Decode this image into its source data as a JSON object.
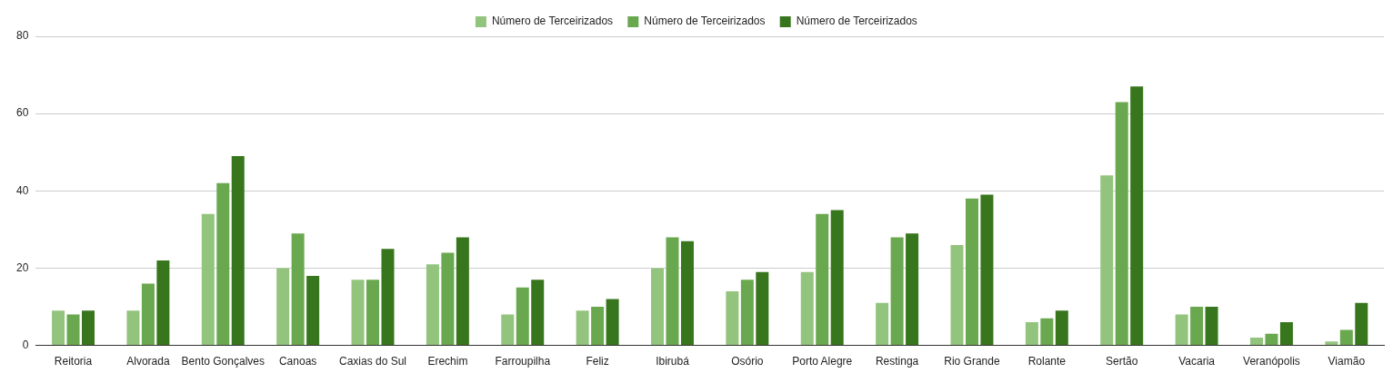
{
  "chart_data": {
    "type": "bar",
    "categories": [
      "Reitoria",
      "Alvorada",
      "Bento Gonçalves",
      "Canoas",
      "Caxias do Sul",
      "Erechim",
      "Farroupilha",
      "Feliz",
      "Ibirubá",
      "Osório",
      "Porto Alegre",
      "Restinga",
      "Rio Grande",
      "Rolante",
      "Sertão",
      "Vacaria",
      "Veranópolis",
      "Viamão"
    ],
    "series": [
      {
        "name": "Número de Terceirizados",
        "color": "#93c47d",
        "values": [
          9,
          9,
          34,
          20,
          17,
          21,
          8,
          9,
          20,
          14,
          19,
          11,
          26,
          6,
          44,
          8,
          2,
          1
        ]
      },
      {
        "name": "Número de Terceirizados",
        "color": "#6aa84f",
        "values": [
          8,
          16,
          42,
          29,
          17,
          24,
          15,
          10,
          28,
          17,
          34,
          28,
          38,
          7,
          63,
          10,
          3,
          4
        ]
      },
      {
        "name": "Número de Terceirizados",
        "color": "#38761d",
        "values": [
          9,
          22,
          49,
          18,
          25,
          28,
          17,
          12,
          27,
          19,
          35,
          29,
          39,
          9,
          67,
          10,
          6,
          11
        ]
      }
    ],
    "ylim": [
      0,
      80
    ],
    "yticks": [
      0,
      20,
      40,
      60,
      80
    ],
    "grid": "y",
    "legend": "top"
  }
}
